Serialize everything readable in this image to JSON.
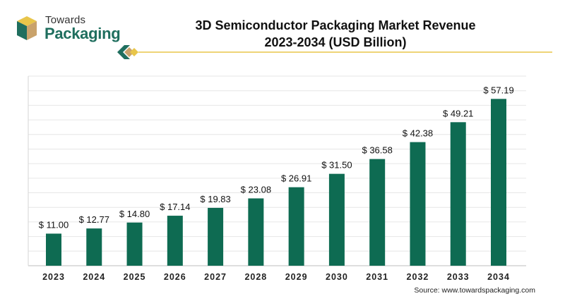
{
  "brand": {
    "line1": "Towards",
    "line2": "Packaging",
    "colors": {
      "green": "#1f6e5e",
      "gold": "#e8c54a",
      "tan": "#c9a26b"
    }
  },
  "title_line1": "3D Semiconductor Packaging Market Revenue",
  "title_line2": "2023-2034 (USD Billion)",
  "source": "Source: www.towardspackaging.com",
  "chart_data": {
    "type": "bar",
    "title": "3D Semiconductor Packaging Market Revenue 2023-2034 (USD Billion)",
    "categories": [
      "2023",
      "2024",
      "2025",
      "2026",
      "2027",
      "2028",
      "2029",
      "2030",
      "2031",
      "2032",
      "2033",
      "2034"
    ],
    "values": [
      11.0,
      12.77,
      14.8,
      17.14,
      19.83,
      23.08,
      26.91,
      31.5,
      36.58,
      42.38,
      49.21,
      57.19
    ],
    "labels": [
      "$ 11.00",
      "$ 12.77",
      "$ 14.80",
      "$ 17.14",
      "$ 19.83",
      "$ 23.08",
      "$ 26.91",
      "$ 31.50",
      "$ 36.58",
      "$ 42.38",
      "$ 49.21",
      "$ 57.19"
    ],
    "xlabel": "",
    "ylabel": "",
    "ylim": [
      0,
      65
    ],
    "grid": true,
    "bar_color": "#0e6b52"
  }
}
